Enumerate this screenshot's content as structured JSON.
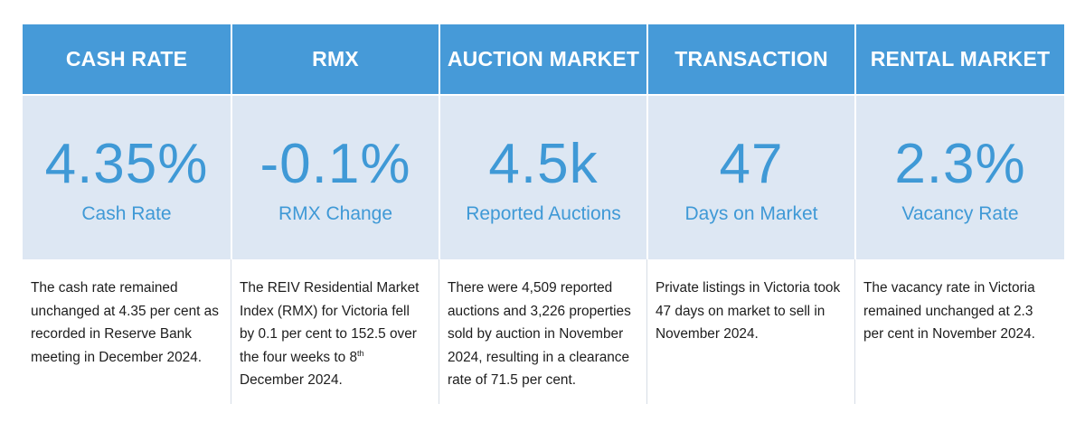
{
  "columns": [
    {
      "header": "CASH RATE",
      "value": "4.35%",
      "label": "Cash Rate",
      "description": "The cash rate remained unchanged at 4.35 per cent as recorded in Reserve Bank meeting in December 2024."
    },
    {
      "header": "RMX",
      "value": "-0.1%",
      "label": "RMX Change",
      "description_before": "The REIV Residential Market Index (RMX) for Victoria fell by 0.1 per cent to 152.5 over the four weeks to 8",
      "description_sup": "th",
      "description_after": " December 2024."
    },
    {
      "header": "AUCTION MARKET",
      "value": "4.5k",
      "label": "Reported Auctions",
      "description": "There were 4,509 reported auctions and 3,226 properties sold by auction in November 2024, resulting in a clearance rate of 71.5 per cent."
    },
    {
      "header": "TRANSACTION",
      "value": "47",
      "label": "Days on Market",
      "description": "Private listings in Victoria took 47 days on market to sell in November 2024."
    },
    {
      "header": "RENTAL MARKET",
      "value": "2.3%",
      "label": "Vacancy Rate",
      "description": "The vacancy rate in Victoria remained unchanged at 2.3 per cent in November 2024."
    }
  ],
  "colors": {
    "header_bg": "#469ad8",
    "stat_bg": "#dde7f3",
    "stat_text": "#3f99d6"
  }
}
